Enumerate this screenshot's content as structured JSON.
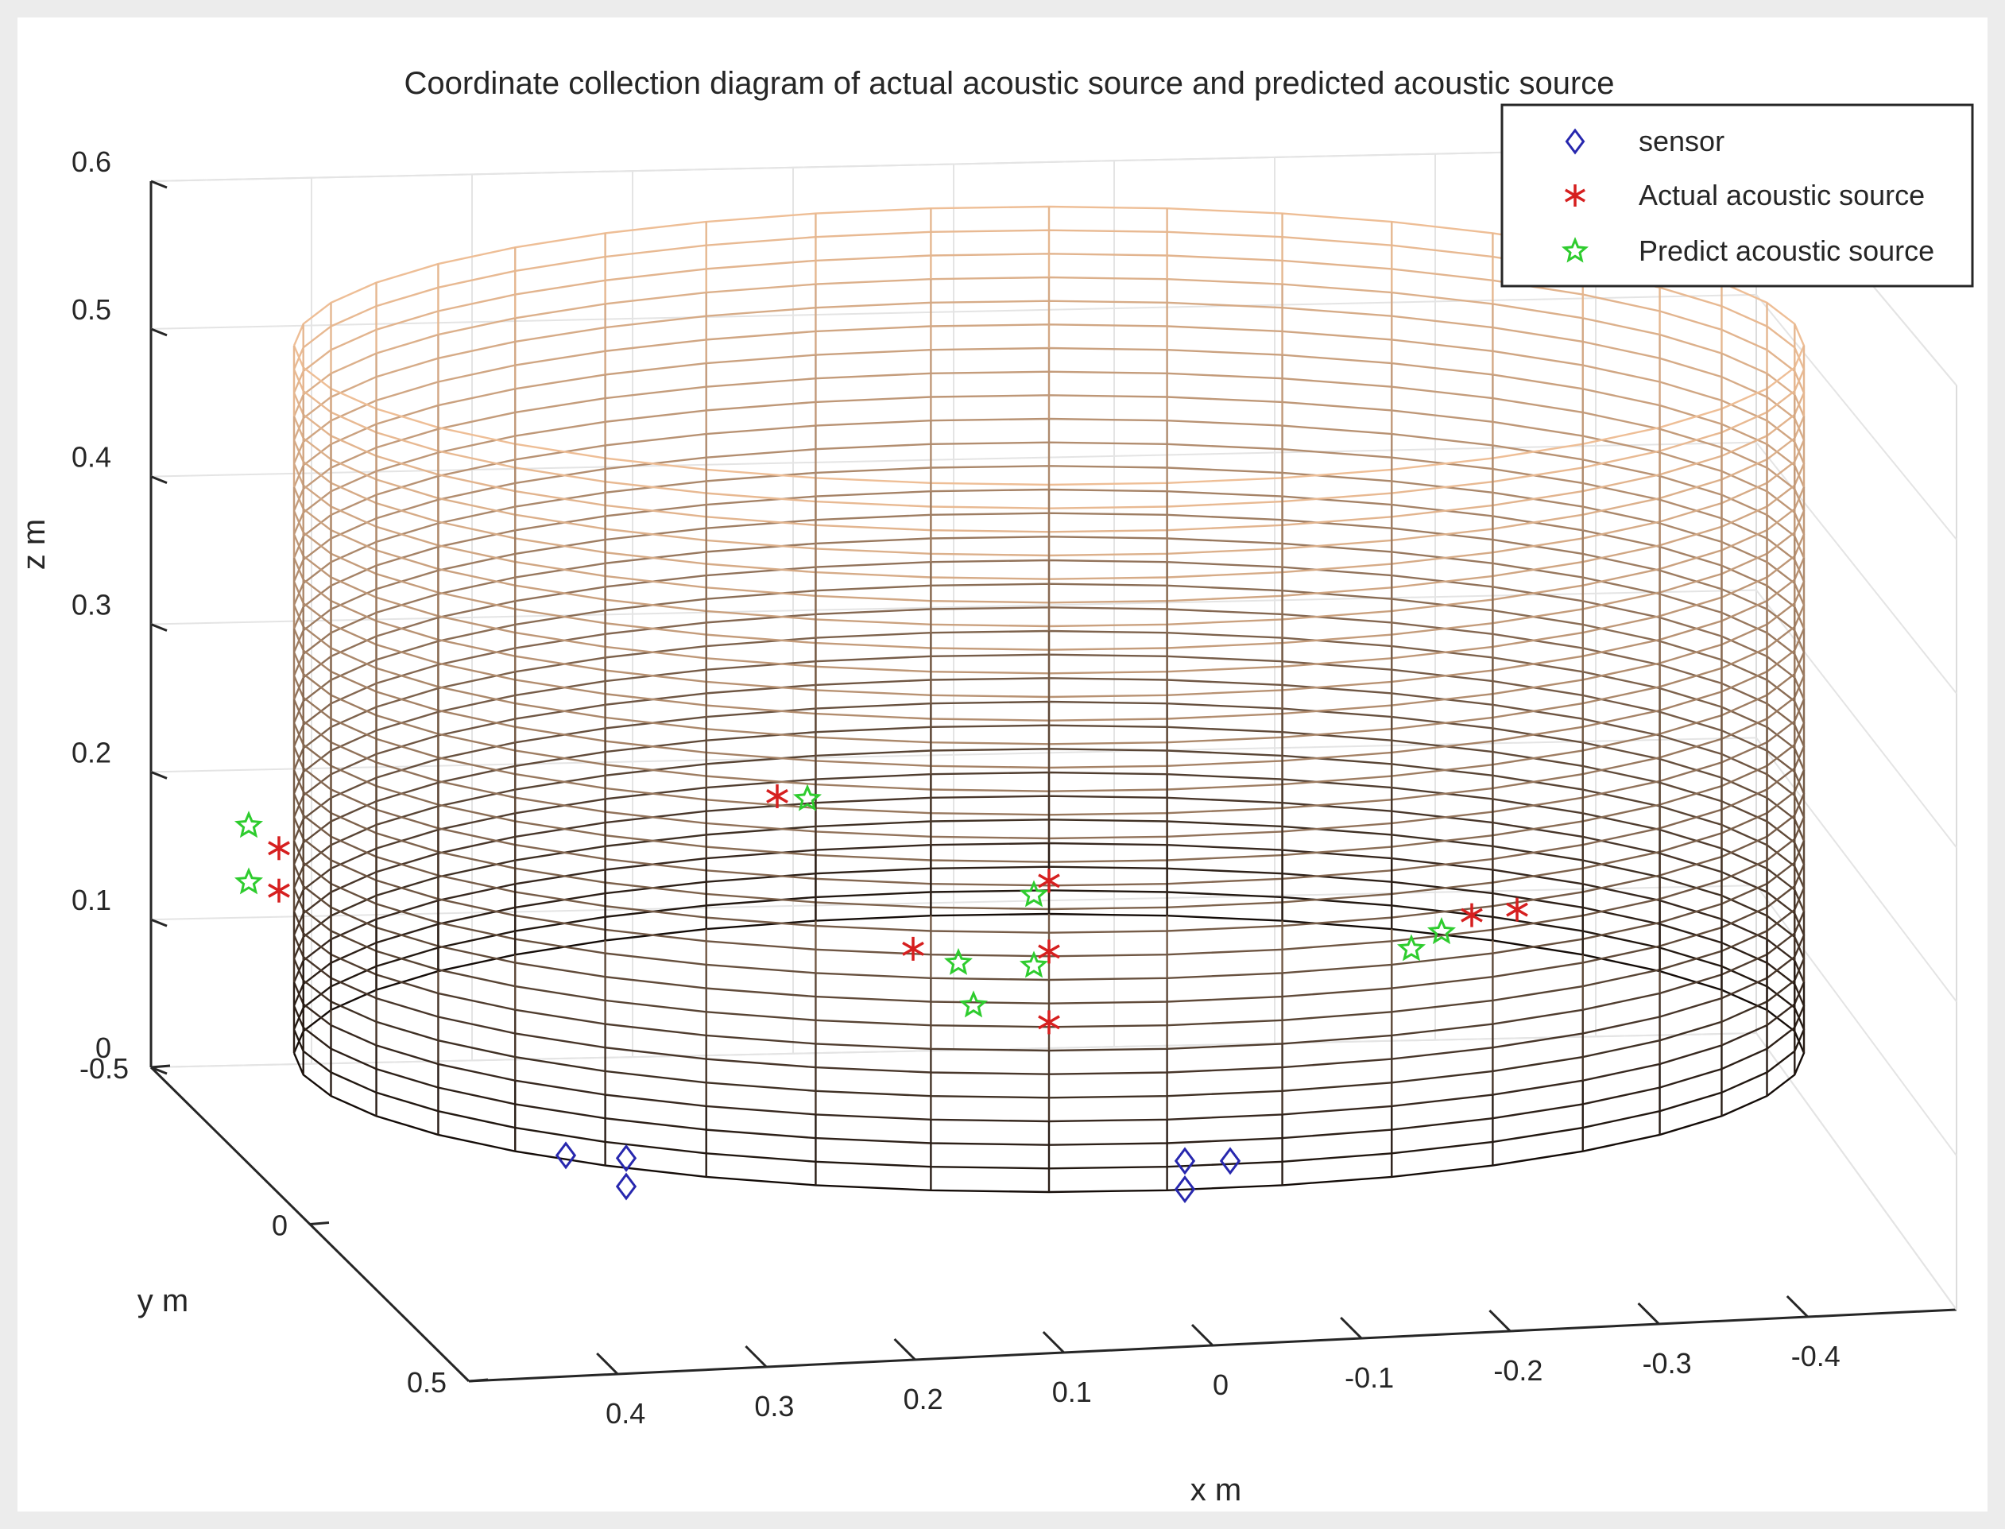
{
  "chart_data": {
    "type": "scatter3d",
    "title": "Coordinate collection diagram of actual acoustic source and predicted acoustic source",
    "xlabel": "x m",
    "ylabel": "y m",
    "zlabel": "z m",
    "xlim": [
      -0.5,
      0.5
    ],
    "ylim": [
      -0.5,
      0.5
    ],
    "zlim": [
      0,
      0.6
    ],
    "x_ticks": [
      "0.4",
      "0.3",
      "0.2",
      "0.1",
      "0",
      "-0.1",
      "-0.2",
      "-0.3",
      "-0.4"
    ],
    "x_tick_values": [
      0.4,
      0.3,
      0.2,
      0.1,
      0,
      -0.1,
      -0.2,
      -0.3,
      -0.4
    ],
    "y_ticks": [
      "-0.5",
      "0",
      "0.5"
    ],
    "y_tick_values": [
      -0.5,
      0,
      0.5
    ],
    "z_ticks": [
      "0",
      "0.1",
      "0.2",
      "0.3",
      "0.4",
      "0.5",
      "0.6"
    ],
    "z_tick_values": [
      0,
      0.1,
      0.2,
      0.3,
      0.4,
      0.5,
      0.6
    ],
    "cylinder": {
      "radius": 0.5,
      "height": 0.5,
      "rings": 31,
      "meridians": 40
    },
    "grid": true,
    "legend_position": "top-right",
    "series": [
      {
        "name": "sensor",
        "marker": "diamond",
        "color": "#2727ae",
        "points": [
          [
            0.32,
            0.47,
            0.02
          ],
          [
            0.28,
            0.48,
            0.02
          ],
          [
            0.28,
            0.48,
            0.0
          ],
          [
            -0.09,
            0.49,
            0.02
          ],
          [
            -0.12,
            0.49,
            0.02
          ],
          [
            -0.09,
            0.49,
            0.0
          ]
        ]
      },
      {
        "name": "Actual acoustic source",
        "marker": "asterisk",
        "color": "#d61f1f",
        "points": [
          [
            0.51,
            0.23,
            0.19
          ],
          [
            0.51,
            0.23,
            0.16
          ],
          [
            0.18,
            0.45,
            0.27
          ],
          [
            0.09,
            0.49,
            0.17
          ],
          [
            0.0,
            0.5,
            0.22
          ],
          [
            0.0,
            0.5,
            0.17
          ],
          [
            0.0,
            0.5,
            0.12
          ],
          [
            -0.28,
            0.42,
            0.18
          ],
          [
            -0.31,
            0.4,
            0.18
          ]
        ]
      },
      {
        "name": "Predict acoustic source",
        "marker": "star",
        "color": "#2ecc2e",
        "points": [
          [
            0.53,
            0.2,
            0.2
          ],
          [
            0.53,
            0.2,
            0.16
          ],
          [
            0.16,
            0.46,
            0.27
          ],
          [
            0.06,
            0.49,
            0.16
          ],
          [
            0.01,
            0.5,
            0.21
          ],
          [
            0.01,
            0.5,
            0.16
          ],
          [
            0.05,
            0.49,
            0.13
          ],
          [
            -0.26,
            0.43,
            0.17
          ],
          [
            -0.24,
            0.44,
            0.16
          ]
        ]
      }
    ]
  }
}
